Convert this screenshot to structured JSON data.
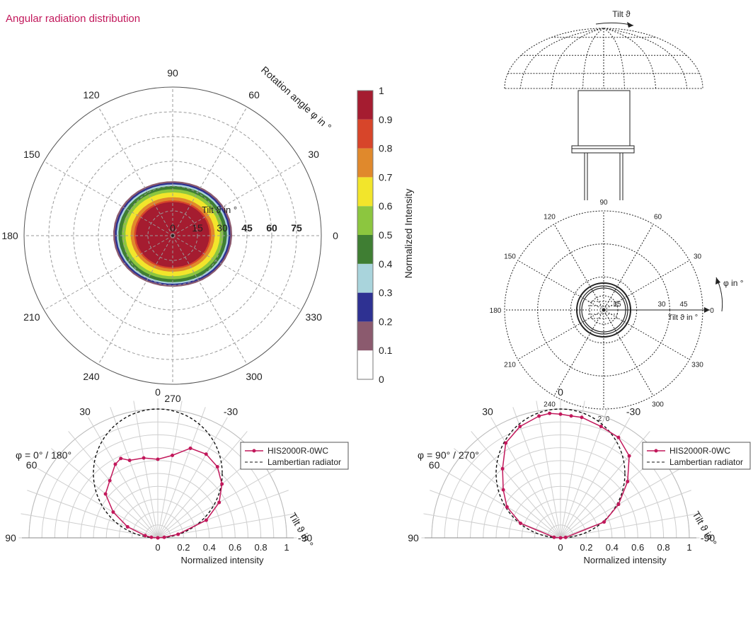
{
  "title": "Angular radiation distribution",
  "colors": {
    "title": "#c2185b",
    "series": "#c2185b",
    "grid": "#9a9a9a",
    "levels": [
      "#ffffff",
      "#8b5a6e",
      "#2e3192",
      "#a9d4dc",
      "#3f7e33",
      "#8cc63f",
      "#f2e52b",
      "#e0892c",
      "#d7452a",
      "#a51c30"
    ]
  },
  "chart_data": [
    {
      "type": "heatmap",
      "subtype": "polar",
      "rotation_label": "Rotation angle φ in °",
      "tilt_label": "Tilt ϑ in °",
      "rotation_ticks": [
        "0",
        "30",
        "60",
        "90",
        "120",
        "150",
        "180",
        "210",
        "240",
        "270",
        "300",
        "330"
      ],
      "tilt_ticks": [
        "0",
        "15",
        "30",
        "45",
        "60",
        "75"
      ],
      "tilt_max": 90,
      "colorbar": {
        "label": "Normalized Intensity",
        "ticks": [
          "0",
          "0.1",
          "0.2",
          "0.3",
          "0.4",
          "0.5",
          "0.6",
          "0.7",
          "0.8",
          "0.9",
          "1"
        ],
        "range": [
          0,
          1
        ]
      },
      "contours": [
        {
          "level": 0.1,
          "tilt_extent_deg": 34
        },
        {
          "level": 0.2,
          "tilt_extent_deg": 33
        },
        {
          "level": 0.3,
          "tilt_extent_deg": 32
        },
        {
          "level": 0.4,
          "tilt_extent_deg": 31
        },
        {
          "level": 0.5,
          "tilt_extent_deg": 29
        },
        {
          "level": 0.6,
          "tilt_extent_deg": 27
        },
        {
          "level": 0.7,
          "tilt_extent_deg": 24
        },
        {
          "level": 0.8,
          "tilt_extent_deg": 22
        },
        {
          "level": 0.9,
          "tilt_extent_deg": 21
        }
      ],
      "peaks": [
        {
          "rotation_deg": 180,
          "tilt_deg": 15,
          "level": 1
        },
        {
          "rotation_deg": 0,
          "tilt_deg": 15,
          "level": 1
        }
      ]
    },
    {
      "type": "diagram",
      "tilt_label": "Tilt ϑ",
      "tilt_axis_label": "Tilt ϑ in °",
      "rotation_axis_label": "φ in °",
      "rotation_ticks": [
        "0",
        "30",
        "60",
        "90",
        "120",
        "150",
        "180",
        "210",
        "240",
        "270",
        "300",
        "330"
      ],
      "tilt_ticks": [
        "15",
        "30",
        "45"
      ]
    },
    {
      "type": "line",
      "subtype": "polar",
      "title": "φ = 0° / 180°",
      "angle_label": "Tilt ϑ in °",
      "xlabel": "Normalized intensity",
      "angle_ticks": [
        "90",
        "60",
        "30",
        "0",
        "-30",
        "-60",
        "-90"
      ],
      "radial_ticks": [
        "0",
        "0.2",
        "0.4",
        "0.6",
        "0.8",
        "1"
      ],
      "legend_position": "top-right",
      "series": [
        {
          "name": "HIS2000R-0WC",
          "style": "solid-markers",
          "angle_deg": [
            -85,
            -80,
            -70,
            -60,
            -50,
            -40,
            -30,
            -25,
            -20,
            -10,
            0,
            10,
            20,
            30,
            40,
            50,
            60,
            70,
            80,
            85
          ],
          "values": [
            0.05,
            0.1,
            0.25,
            0.4,
            0.53,
            0.58,
            0.66,
            0.68,
            0.64,
            0.63,
            0.61,
            0.65,
            0.74,
            0.75,
            0.72,
            0.65,
            0.55,
            0.4,
            0.16,
            0.05
          ]
        },
        {
          "name": "Lambertian radiator",
          "style": "dashed",
          "model": "cos(ϑ)"
        }
      ]
    },
    {
      "type": "line",
      "subtype": "polar",
      "title": "φ = 90° / 270°",
      "angle_label": "Tilt ϑ in °",
      "xlabel": "Normalized intensity",
      "angle_ticks": [
        "90",
        "60",
        "30",
        "0",
        "-30",
        "-60",
        "-90"
      ],
      "radial_ticks": [
        "0",
        "0.2",
        "0.4",
        "0.6",
        "0.8",
        "1"
      ],
      "legend_position": "top-right",
      "series": [
        {
          "name": "HIS2000R-0WC",
          "style": "solid-markers",
          "angle_deg": [
            -85,
            -70,
            -60,
            -50,
            -40,
            -30,
            -20,
            -10,
            -5,
            0,
            5,
            10,
            20,
            30,
            40,
            50,
            60,
            70,
            85
          ],
          "values": [
            0.05,
            0.33,
            0.48,
            0.58,
            0.7,
            0.85,
            0.92,
            0.96,
            0.97,
            0.96,
            0.95,
            0.95,
            0.92,
            0.9,
            0.83,
            0.68,
            0.52,
            0.36,
            0.04
          ]
        },
        {
          "name": "Lambertian radiator",
          "style": "dashed",
          "model": "cos(ϑ)"
        }
      ]
    }
  ]
}
